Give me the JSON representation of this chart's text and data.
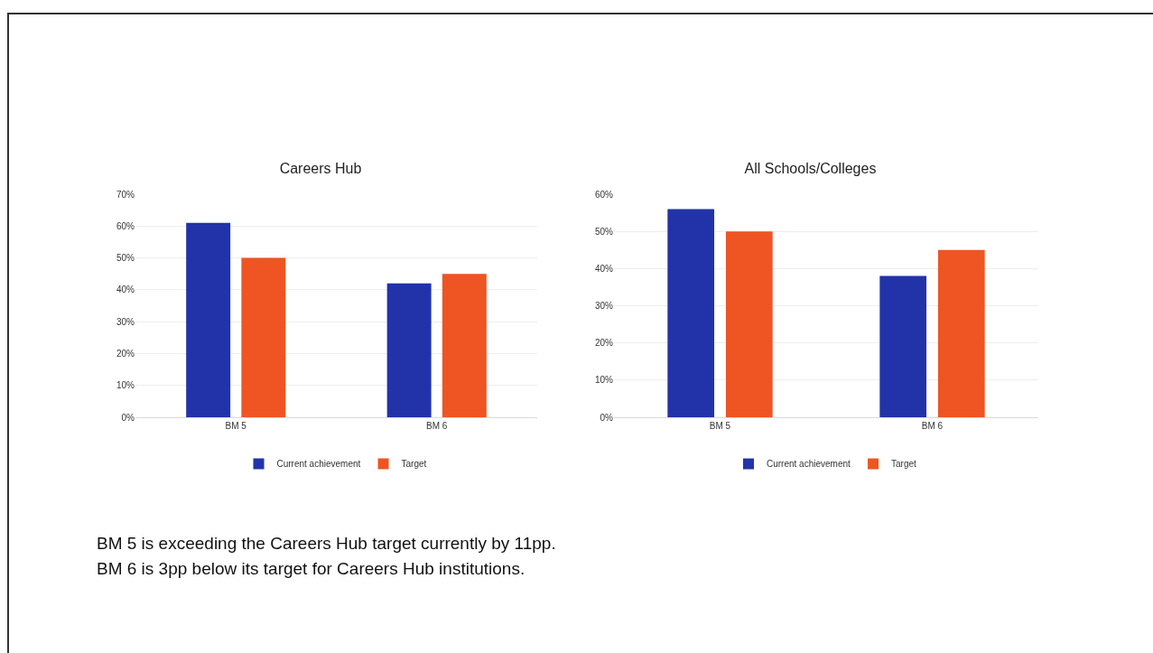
{
  "chart_data": [
    {
      "type": "bar",
      "title": "Careers Hub",
      "categories": [
        "BM 5",
        "BM 6"
      ],
      "series": [
        {
          "name": "Current achievement",
          "color": "#2233aa",
          "values": [
            61,
            42
          ]
        },
        {
          "name": "Target",
          "color": "#ee5522",
          "values": [
            50,
            45
          ]
        }
      ],
      "ylim": [
        0,
        70
      ],
      "yticks": [
        {
          "value": 0,
          "label": "0%"
        },
        {
          "value": 10,
          "label": "10%"
        },
        {
          "value": 20,
          "label": "20%"
        },
        {
          "value": 30,
          "label": "30%"
        },
        {
          "value": 40,
          "label": "40%"
        },
        {
          "value": 50,
          "label": "50%"
        },
        {
          "value": 60,
          "label": "60%"
        },
        {
          "value": 70,
          "label": "70%"
        }
      ],
      "grid": "y",
      "legend": "bottom"
    },
    {
      "type": "bar",
      "title": "All Schools/Colleges",
      "categories": [
        "BM 5",
        "BM 6"
      ],
      "series": [
        {
          "name": "Current achievement",
          "color": "#2233aa",
          "values": [
            56,
            38
          ]
        },
        {
          "name": "Target",
          "color": "#ee5522",
          "values": [
            50,
            45
          ]
        }
      ],
      "ylim": [
        0,
        60
      ],
      "yticks": [
        {
          "value": 0,
          "label": "0%"
        },
        {
          "value": 10,
          "label": "10%"
        },
        {
          "value": 20,
          "label": "20%"
        },
        {
          "value": 30,
          "label": "30%"
        },
        {
          "value": 40,
          "label": "40%"
        },
        {
          "value": 50,
          "label": "50%"
        },
        {
          "value": 60,
          "label": "60%"
        }
      ],
      "grid": "y",
      "legend": "bottom"
    },
    {
      "type": "other",
      "annotations": [
        "BM 5 is exceeding the Careers Hub target currently by 11pp.",
        "BM 6 is 3pp below its target for Careers Hub institutions."
      ]
    }
  ]
}
